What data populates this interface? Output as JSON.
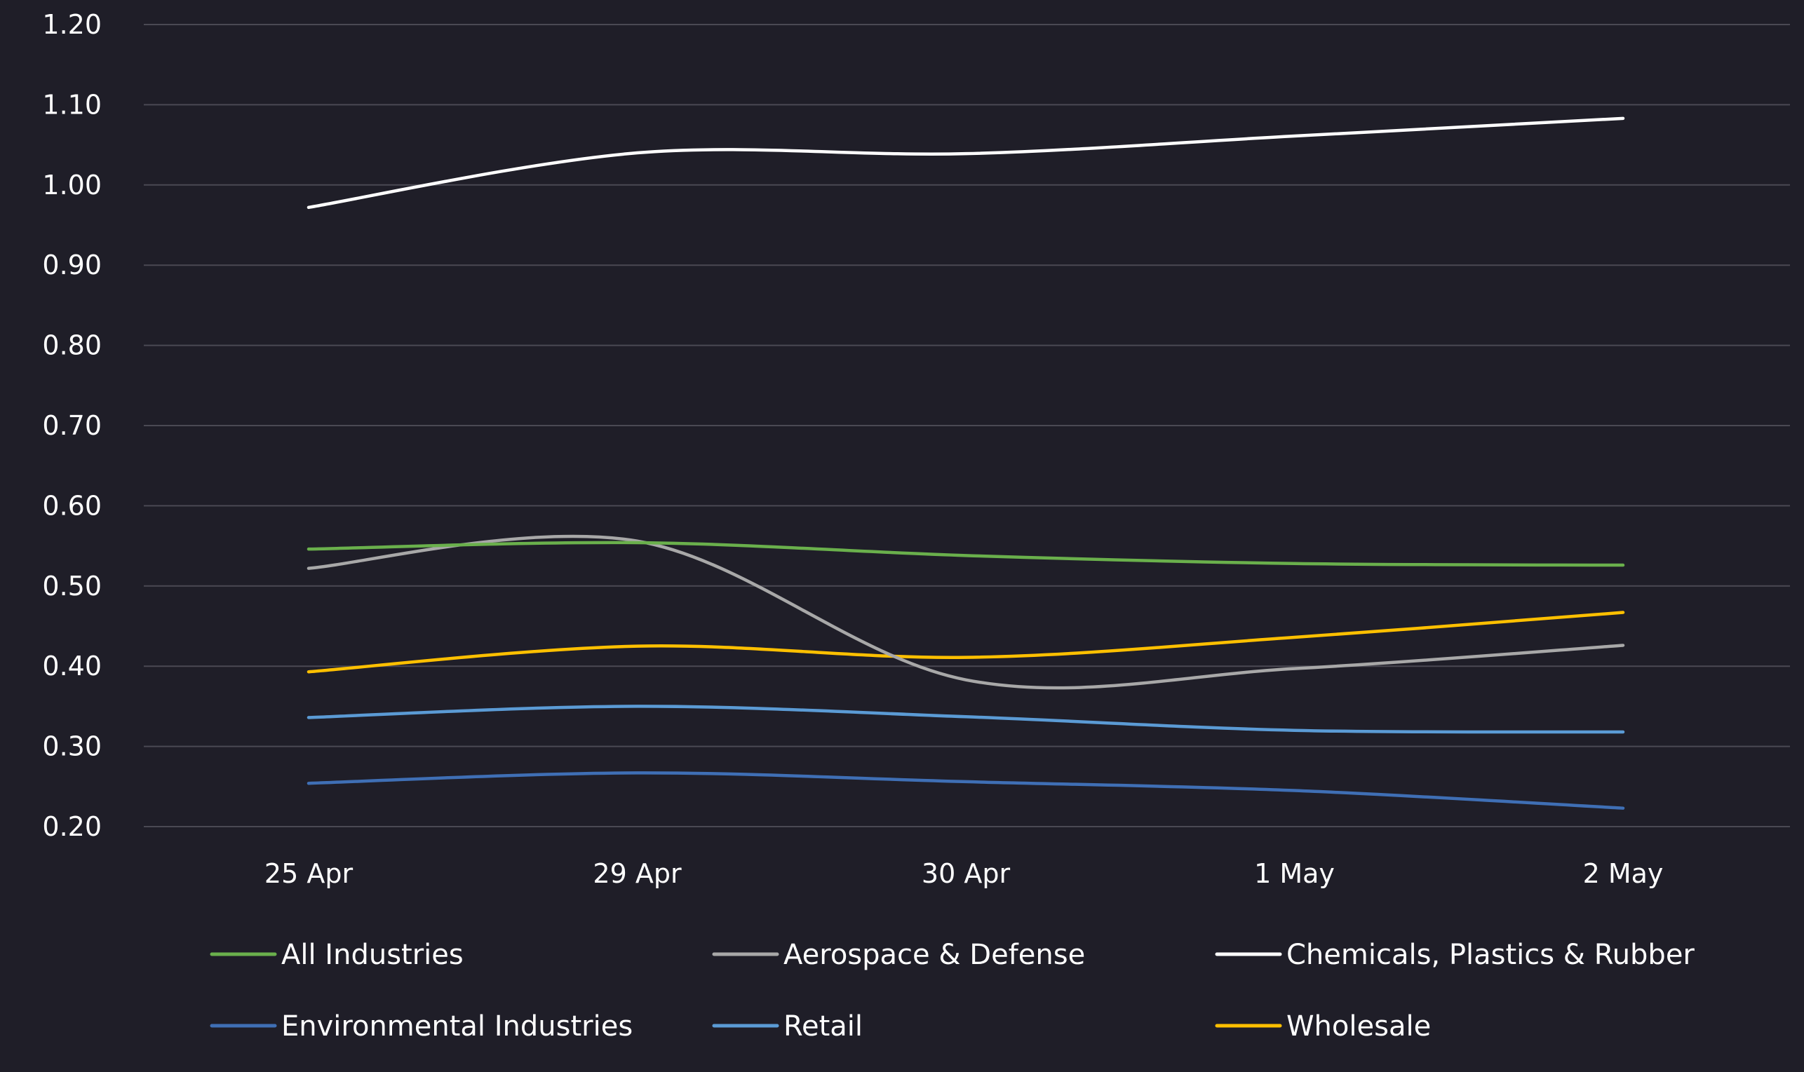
{
  "chart_data": {
    "type": "line",
    "title": "",
    "xlabel": "",
    "ylabel": "",
    "categories": [
      "25 Apr",
      "29 Apr",
      "30 Apr",
      "1 May",
      "2 May"
    ],
    "y_ticks": [
      "0.20",
      "0.30",
      "0.40",
      "0.50",
      "0.60",
      "0.70",
      "0.80",
      "0.90",
      "1.00",
      "1.10",
      "1.20"
    ],
    "ylim": [
      0.2,
      1.2
    ],
    "grid": "horizontal",
    "legend_position": "bottom",
    "background": "#1f1e28",
    "series": [
      {
        "name": "All Industries",
        "color": "#6ab04c",
        "values": [
          0.546,
          0.554,
          0.538,
          0.528,
          0.526
        ]
      },
      {
        "name": "Aerospace & Defense",
        "color": "#a8a8a8",
        "values": [
          0.522,
          0.556,
          0.383,
          0.397,
          0.426
        ]
      },
      {
        "name": "Chemicals, Plastics & Rubber",
        "color": "#ffffff",
        "values": [
          0.972,
          1.04,
          1.039,
          1.061,
          1.083
        ]
      },
      {
        "name": "Environmental Industries",
        "color": "#3f6fb5",
        "values": [
          0.254,
          0.267,
          0.256,
          0.245,
          0.223
        ]
      },
      {
        "name": "Retail",
        "color": "#5b9bd5",
        "values": [
          0.336,
          0.35,
          0.337,
          0.32,
          0.318
        ]
      },
      {
        "name": "Wholesale",
        "color": "#ffc000",
        "values": [
          0.393,
          0.425,
          0.411,
          0.436,
          0.467
        ]
      }
    ]
  }
}
